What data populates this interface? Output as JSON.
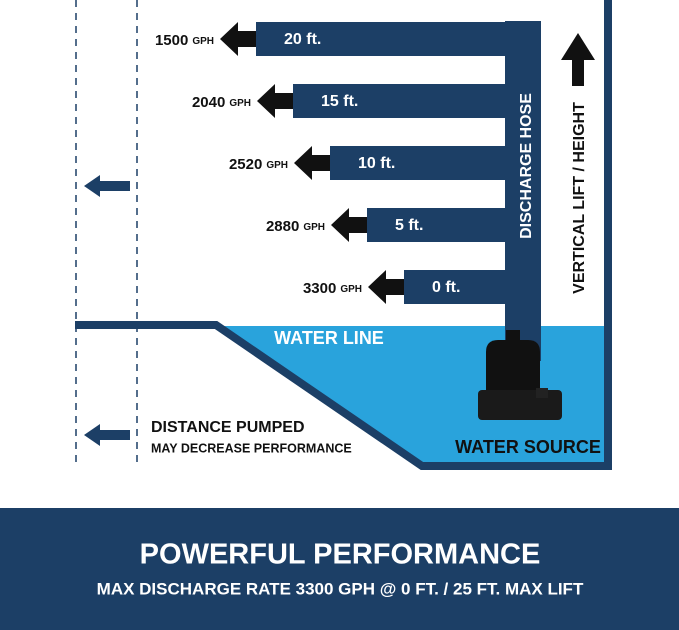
{
  "levels": [
    {
      "height": "20 ft.",
      "flow": "1500",
      "unit": "GPH"
    },
    {
      "height": "15 ft.",
      "flow": "2040",
      "unit": "GPH"
    },
    {
      "height": "10 ft.",
      "flow": "2520",
      "unit": "GPH"
    },
    {
      "height": "5 ft.",
      "flow": "2880",
      "unit": "GPH"
    },
    {
      "height": "0 ft.",
      "flow": "3300",
      "unit": "GPH"
    }
  ],
  "labels": {
    "hose": "DISCHARGE HOSE",
    "lift": "VERTICAL LIFT / HEIGHT",
    "water_line": "WATER LINE",
    "water_source": "WATER SOURCE",
    "distance": "DISTANCE PUMPED",
    "distance_note": "MAY DECREASE PERFORMANCE"
  },
  "footer": {
    "title": "POWERFUL PERFORMANCE",
    "subtitle": "MAX DISCHARGE RATE 3300 GPH @ 0 FT. / 25 FT. MAX LIFT"
  }
}
